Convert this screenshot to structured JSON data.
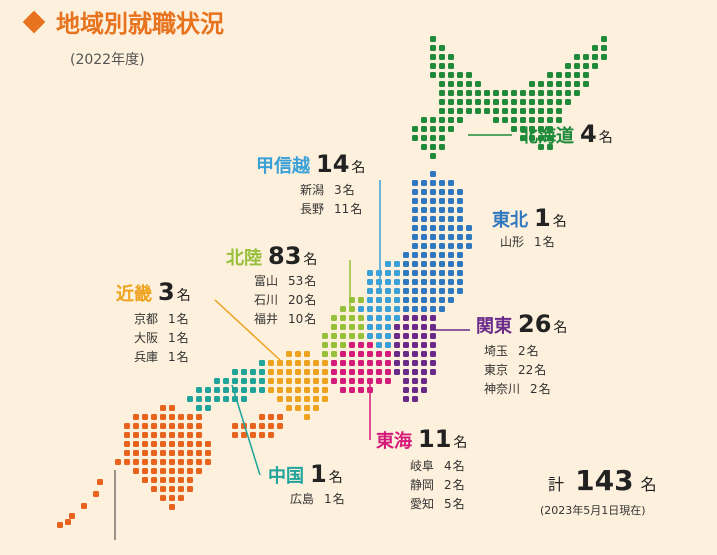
{
  "header": {
    "title": "地域別就職状況",
    "subtitle": "(2022年度)"
  },
  "unit": "名",
  "regions": [
    {
      "name": "北海道",
      "count": 4,
      "color": "#1e8a3a"
    },
    {
      "name": "甲信越",
      "count": 14,
      "color": "#3aa0d8",
      "prefectures": [
        {
          "name": "新潟",
          "count": 3
        },
        {
          "name": "長野",
          "count": 11
        }
      ]
    },
    {
      "name": "東北",
      "count": 1,
      "color": "#2f78c0",
      "prefectures": [
        {
          "name": "山形",
          "count": 1
        }
      ]
    },
    {
      "name": "北陸",
      "count": 83,
      "color": "#96c03a",
      "prefectures": [
        {
          "name": "富山",
          "count": 53
        },
        {
          "name": "石川",
          "count": 20
        },
        {
          "name": "福井",
          "count": 10
        }
      ]
    },
    {
      "name": "近畿",
      "count": 3,
      "color": "#eea21e",
      "prefectures": [
        {
          "name": "京都",
          "count": 1
        },
        {
          "name": "大阪",
          "count": 1
        },
        {
          "name": "兵庫",
          "count": 1
        }
      ]
    },
    {
      "name": "関東",
      "count": 26,
      "color": "#6a2a8a",
      "prefectures": [
        {
          "name": "埼玉",
          "count": 2
        },
        {
          "name": "東京",
          "count": 22
        },
        {
          "name": "神奈川",
          "count": 2
        }
      ]
    },
    {
      "name": "東海",
      "count": 11,
      "color": "#d41a7a",
      "prefectures": [
        {
          "name": "岐阜",
          "count": 4
        },
        {
          "name": "静岡",
          "count": 2
        },
        {
          "name": "愛知",
          "count": 5
        }
      ]
    },
    {
      "name": "中国",
      "count": 1,
      "color": "#1fa39a",
      "prefectures": [
        {
          "name": "広島",
          "count": 1
        }
      ]
    }
  ],
  "total": {
    "label": "計",
    "count": 143,
    "note": "(2023年5月1日現在)"
  }
}
